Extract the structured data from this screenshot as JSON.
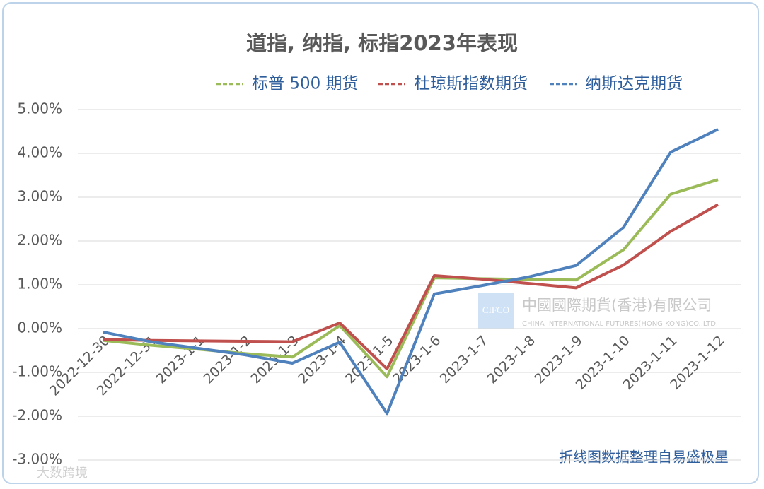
{
  "chart_data": {
    "type": "line",
    "title": "道指, 纳指, 标指2023年表现",
    "categories": [
      "2022-12-30",
      "2022-12-31",
      "2023-1-1",
      "2023-1-2",
      "2023-1-3",
      "2023-1-4",
      "2023-1-5",
      "2023-1-6",
      "2023-1-7",
      "2023-1-8",
      "2023-1-9",
      "2023-1-10",
      "2023-1-11",
      "2023-1-12"
    ],
    "series": [
      {
        "name": "标普 500 期货",
        "color": "#9bbb59",
        "values": [
          -0.27,
          -0.38,
          -0.47,
          -0.57,
          -0.65,
          0.07,
          -1.1,
          1.16,
          1.14,
          1.12,
          1.11,
          1.8,
          3.07,
          3.4
        ]
      },
      {
        "name": "杜琼斯指数期货",
        "color": "#c0504d",
        "values": [
          -0.25,
          -0.27,
          -0.28,
          -0.29,
          -0.3,
          0.13,
          -0.92,
          1.21,
          1.13,
          1.03,
          0.93,
          1.45,
          2.22,
          2.83
        ]
      },
      {
        "name": "纳斯达克期货",
        "color": "#4f81bd",
        "values": [
          -0.08,
          -0.3,
          -0.45,
          -0.6,
          -0.79,
          -0.31,
          -1.94,
          0.79,
          0.98,
          1.18,
          1.44,
          2.31,
          4.03,
          4.55
        ]
      }
    ],
    "ylim": [
      -3,
      5
    ],
    "yticks": [
      {
        "value": -3,
        "label": "-3.00%"
      },
      {
        "value": -2,
        "label": "-2.00%"
      },
      {
        "value": -1,
        "label": "-1.00%"
      },
      {
        "value": 0,
        "label": "0.00%"
      },
      {
        "value": 1,
        "label": "1.00%"
      },
      {
        "value": 2,
        "label": "2.00%"
      },
      {
        "value": 3,
        "label": "3.00%"
      },
      {
        "value": 4,
        "label": "4.00%"
      },
      {
        "value": 5,
        "label": "5.00%"
      }
    ],
    "grid": true,
    "annotations": [
      "折线图数据整理自易盛极星",
      "CIFCO",
      "中國國際期貨(香港)有限公司",
      "CHINA INTERNATIONAL FUTURES(HONG KONG)CO.,LTD.",
      "大数跨境"
    ]
  }
}
